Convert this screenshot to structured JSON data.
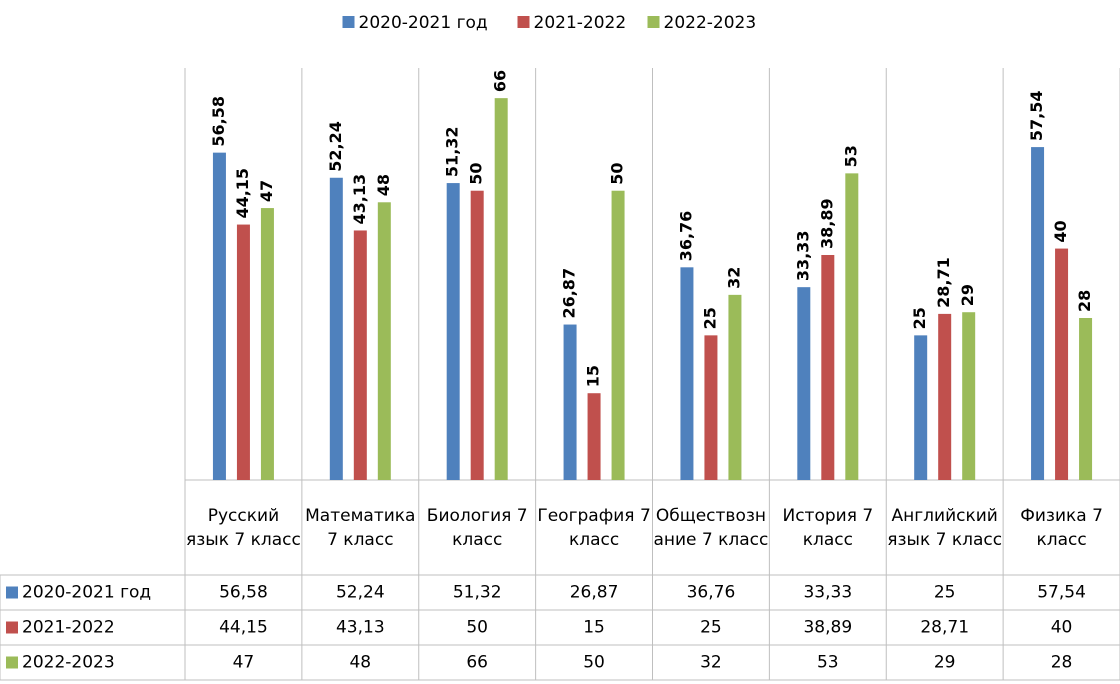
{
  "chart_data": {
    "type": "bar",
    "categories": [
      "Русский язык 7 класс",
      "Математика 7 класс",
      "Биология 7 класс",
      "География 7 класс",
      "Обществознание 7 класс",
      "История 7 класс",
      "Английский язык 7 класс",
      "Физика 7 класс"
    ],
    "series": [
      {
        "name": "2020-2021 год",
        "color": "#4f81bd",
        "values": [
          56.58,
          52.24,
          51.32,
          26.87,
          36.76,
          33.33,
          25,
          57.54
        ],
        "value_labels": [
          "56,58",
          "52,24",
          "51,32",
          "26,87",
          "36,76",
          "33,33",
          "25",
          "57,54"
        ]
      },
      {
        "name": "2021-2022",
        "color": "#c0504d",
        "values": [
          44.15,
          43.13,
          50,
          15,
          25,
          38.89,
          28.71,
          40
        ],
        "value_labels": [
          "44,15",
          "43,13",
          "50",
          "15",
          "25",
          "38,89",
          "28,71",
          "40"
        ]
      },
      {
        "name": "2022-2023",
        "color": "#9bbb59",
        "values": [
          47,
          48,
          66,
          50,
          32,
          53,
          29,
          28
        ],
        "value_labels": [
          "47",
          "48",
          "66",
          "50",
          "32",
          "53",
          "29",
          "28"
        ]
      }
    ],
    "ylim": [
      0,
      70
    ],
    "legend": "top"
  }
}
